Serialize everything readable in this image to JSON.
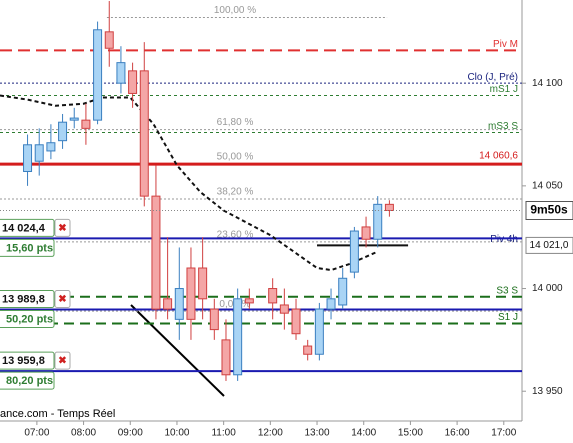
{
  "chart_data": {
    "type": "candlestick",
    "xlim": [
      6.21,
      17.39
    ],
    "ylim": [
      13935.5,
      14140.5
    ],
    "xticks": [
      {
        "value": 7,
        "label": "07:00"
      },
      {
        "value": 8,
        "label": "08:00"
      },
      {
        "value": 9,
        "label": "09:00"
      },
      {
        "value": 10,
        "label": "10:00"
      },
      {
        "value": 11,
        "label": "11:00"
      },
      {
        "value": 12,
        "label": "12:00"
      },
      {
        "value": 13,
        "label": "13:00"
      },
      {
        "value": 14,
        "label": "14:00"
      },
      {
        "value": 15,
        "label": "15:00"
      },
      {
        "value": 16,
        "label": "16:00"
      },
      {
        "value": 17,
        "label": "17:00"
      }
    ],
    "yticks": [
      {
        "value": 14100,
        "label": "14 100"
      },
      {
        "value": 14050,
        "label": "14 050"
      },
      {
        "value": 14000,
        "label": "14 000"
      },
      {
        "value": 13950,
        "label": "13 950"
      }
    ],
    "up_color": "#a9d4f5",
    "up_edge": "#3a7fc0",
    "down_color": "#f4a6a6",
    "down_edge": "#d04040",
    "x": [
      6.8,
      7.05,
      7.3,
      7.55,
      7.8,
      8.05,
      8.3,
      8.55,
      8.8,
      9.05,
      9.3,
      9.55,
      9.8,
      10.05,
      10.3,
      10.55,
      10.8,
      11.05,
      11.3,
      11.55,
      12.05,
      12.3,
      12.55,
      12.8,
      13.05,
      13.3,
      13.55,
      13.8,
      14.05,
      14.3,
      14.55
    ],
    "open": [
      14057,
      14062,
      14067,
      14072,
      14082,
      14082,
      14082,
      14125,
      14100,
      14106,
      14106,
      14045,
      13995,
      13985,
      14010,
      14010,
      13990,
      13975,
      13958,
      13995,
      14000,
      13992,
      13990,
      13972,
      13968,
      13990,
      13992,
      14008,
      14030,
      14024,
      14041
    ],
    "high": [
      14075,
      14078,
      14080,
      14085,
      14088,
      14090,
      14130,
      14140,
      14118,
      14110,
      14120,
      14060,
      14025,
      14020,
      14020,
      14025,
      13995,
      13985,
      14000,
      14000,
      14005,
      14000,
      13995,
      13975,
      13993,
      14000,
      14010,
      14030,
      14035,
      14045,
      14043
    ],
    "low": [
      14050,
      14055,
      14063,
      14068,
      14078,
      14070,
      14080,
      14108,
      14095,
      14088,
      14040,
      13985,
      13985,
      13975,
      13975,
      13985,
      13975,
      13955,
      13955,
      13990,
      13985,
      13980,
      13975,
      13965,
      13965,
      13985,
      13990,
      14005,
      14020,
      14020,
      14035
    ],
    "close": [
      14070,
      14070,
      14071,
      14081,
      14083,
      14078,
      14126,
      14117,
      14110,
      14095,
      14045,
      13990,
      13990,
      14000,
      13985,
      13995,
      13980,
      13958,
      13995,
      13993,
      13993,
      13988,
      13978,
      13968,
      13990,
      13995,
      14005,
      14028,
      14024,
      14041,
      14038
    ],
    "ma": {
      "color": "#111111",
      "x": [
        6.21,
        6.8,
        7.4,
        8,
        8.4,
        9,
        9.5,
        10,
        10.5,
        11,
        11.5,
        12,
        12.5,
        13,
        13.3,
        13.7,
        14.3
      ],
      "values": [
        14094,
        14092,
        14089,
        14090,
        14093,
        14093,
        14080,
        14060,
        14047,
        14038,
        14032,
        14026,
        14018,
        14010,
        14009,
        14012,
        14018
      ]
    },
    "levels": [
      {
        "name": "Piv M",
        "value": 14116,
        "color": "#e03030",
        "dash": "12,6",
        "width": 2
      },
      {
        "name": "Clo (J, Pré)",
        "value": 14100,
        "color": "#1a237e",
        "dash": "2,2",
        "width": 1
      },
      {
        "name": "mS1 J",
        "value": 14094,
        "color": "#2e7d32",
        "dash": "3,3",
        "width": 1
      },
      {
        "name": "mS3 S",
        "value": 14076,
        "color": "#2e7d32",
        "dash": "3,3",
        "width": 1
      },
      {
        "name": "Piv 4h",
        "value": 14021,
        "value_label": "14 021,0",
        "color": "#111111",
        "width": 2,
        "from": 13.0,
        "to": 14.95
      },
      {
        "name": "S3 S",
        "value": 13996,
        "color": "#1b6e1b",
        "dash": "10,6",
        "width": 2
      },
      {
        "name": "S1 J",
        "value": 13983,
        "color": "#1b6e1b",
        "dash": "10,6",
        "width": 2
      }
    ],
    "fib": [
      {
        "label": "100,00 %",
        "value": 14132,
        "from": 8.5,
        "to": 14.5
      },
      {
        "label": "61,80 %",
        "value": 14077.4
      },
      {
        "label": "50,00 %",
        "value": 14060.6,
        "value_label": "14 060,6",
        "color": "#d41c1c",
        "width": 3
      },
      {
        "label": "38,20 %",
        "value": 14043.6
      },
      {
        "label": "23,60 %",
        "value": 14022.7
      },
      {
        "label": "0,00 %",
        "value": 13989
      }
    ],
    "orders": [
      {
        "value": 14024.4,
        "label": "14 024,4",
        "points": "15,60 pts"
      },
      {
        "value": 13989.8,
        "label": "13 989,8",
        "points": "50,20 pts"
      },
      {
        "value": 13959.8,
        "label": "13 959,8",
        "points": "80,20 pts"
      }
    ],
    "order_color": "#1a1ab0",
    "last": 14038,
    "countdown": "9m50s",
    "source": "ance.com - Temps Réel"
  }
}
